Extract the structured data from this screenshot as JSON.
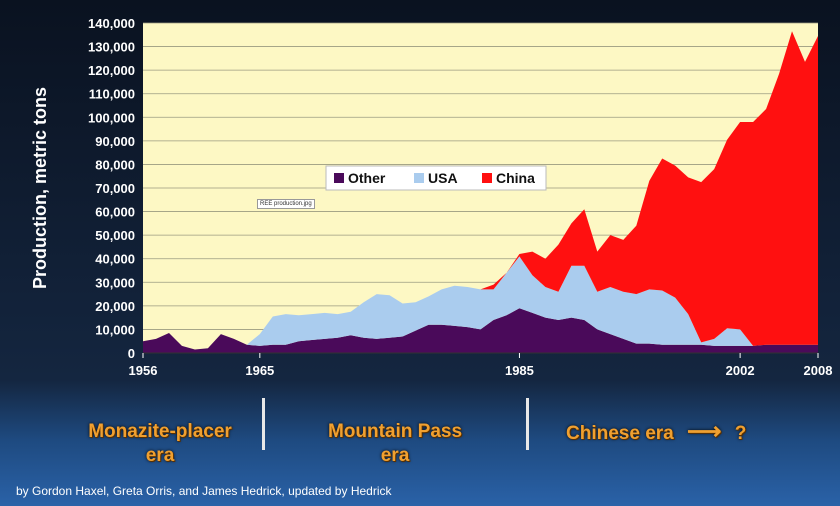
{
  "chart_data": {
    "type": "area",
    "ylabel": "Production, metric tons",
    "ylim": [
      0,
      140000
    ],
    "y_ticks": [
      "0",
      "10,000",
      "20,000",
      "30,000",
      "40,000",
      "50,000",
      "60,000",
      "70,000",
      "80,000",
      "90,000",
      "100,000",
      "110,000",
      "120,000",
      "130,000",
      "140,000"
    ],
    "x_ticks": [
      "1956",
      "1965",
      "1985",
      "2002",
      "2008"
    ],
    "xlim": [
      1956,
      2008
    ],
    "grid": true,
    "legend_position": "center",
    "x": [
      1956,
      1957,
      1958,
      1959,
      1960,
      1961,
      1962,
      1963,
      1964,
      1965,
      1966,
      1967,
      1968,
      1969,
      1970,
      1971,
      1972,
      1973,
      1974,
      1975,
      1976,
      1977,
      1978,
      1979,
      1980,
      1981,
      1982,
      1983,
      1984,
      1985,
      1986,
      1987,
      1988,
      1989,
      1990,
      1991,
      1992,
      1993,
      1994,
      1995,
      1996,
      1997,
      1998,
      1999,
      2000,
      2001,
      2002,
      2003,
      2004,
      2005,
      2006,
      2007,
      2008
    ],
    "series": [
      {
        "name": "Other",
        "color": "#4a0a5a",
        "values": [
          5000,
          6000,
          8500,
          3000,
          1500,
          2000,
          8000,
          6000,
          3500,
          3000,
          3500,
          3500,
          5000,
          5500,
          6000,
          6500,
          7500,
          6500,
          6000,
          6500,
          7000,
          9500,
          12000,
          12000,
          11500,
          11000,
          10000,
          14000,
          16000,
          19000,
          17000,
          15000,
          14000,
          15000,
          14000,
          10000,
          8000,
          6000,
          4000,
          4000,
          3500,
          3500,
          3500,
          3500,
          3000,
          3000,
          3000,
          3000,
          3500,
          3500,
          3500,
          3500,
          3500
        ]
      },
      {
        "name": "USA",
        "color": "#aaccee",
        "values": [
          0,
          0,
          0,
          0,
          0,
          0,
          0,
          0,
          0,
          5000,
          12000,
          13000,
          11000,
          11000,
          11000,
          10000,
          10000,
          15000,
          19000,
          18000,
          14000,
          12000,
          12000,
          15000,
          17000,
          17000,
          17000,
          13000,
          18000,
          22000,
          16000,
          13000,
          12000,
          22000,
          23000,
          16000,
          20000,
          20000,
          21000,
          23000,
          23000,
          20000,
          13000,
          1000,
          3000,
          7500,
          7000,
          0,
          0,
          0,
          0,
          0,
          0
        ]
      },
      {
        "name": "China",
        "color": "#ff1010",
        "values": [
          0,
          0,
          0,
          0,
          0,
          0,
          0,
          0,
          0,
          0,
          0,
          0,
          0,
          0,
          0,
          0,
          0,
          0,
          0,
          0,
          0,
          0,
          0,
          0,
          0,
          0,
          0,
          2000,
          0,
          1000,
          10000,
          12000,
          20000,
          18000,
          24000,
          17000,
          22000,
          22000,
          29000,
          46000,
          56000,
          56000,
          58000,
          68000,
          72000,
          80000,
          88000,
          95000,
          100000,
          115000,
          133000,
          120000,
          131000
        ]
      }
    ]
  },
  "image_label": "REE production.jpg",
  "eras": [
    {
      "line1": "Monazite-placer",
      "line2": "era"
    },
    {
      "line1": "Mountain Pass",
      "line2": "era"
    },
    {
      "line1": "Chinese era",
      "line2": "?"
    }
  ],
  "era_arrow": "⟶",
  "credit": "by Gordon Haxel, Greta Orris, and James Hedrick, updated by Hedrick"
}
